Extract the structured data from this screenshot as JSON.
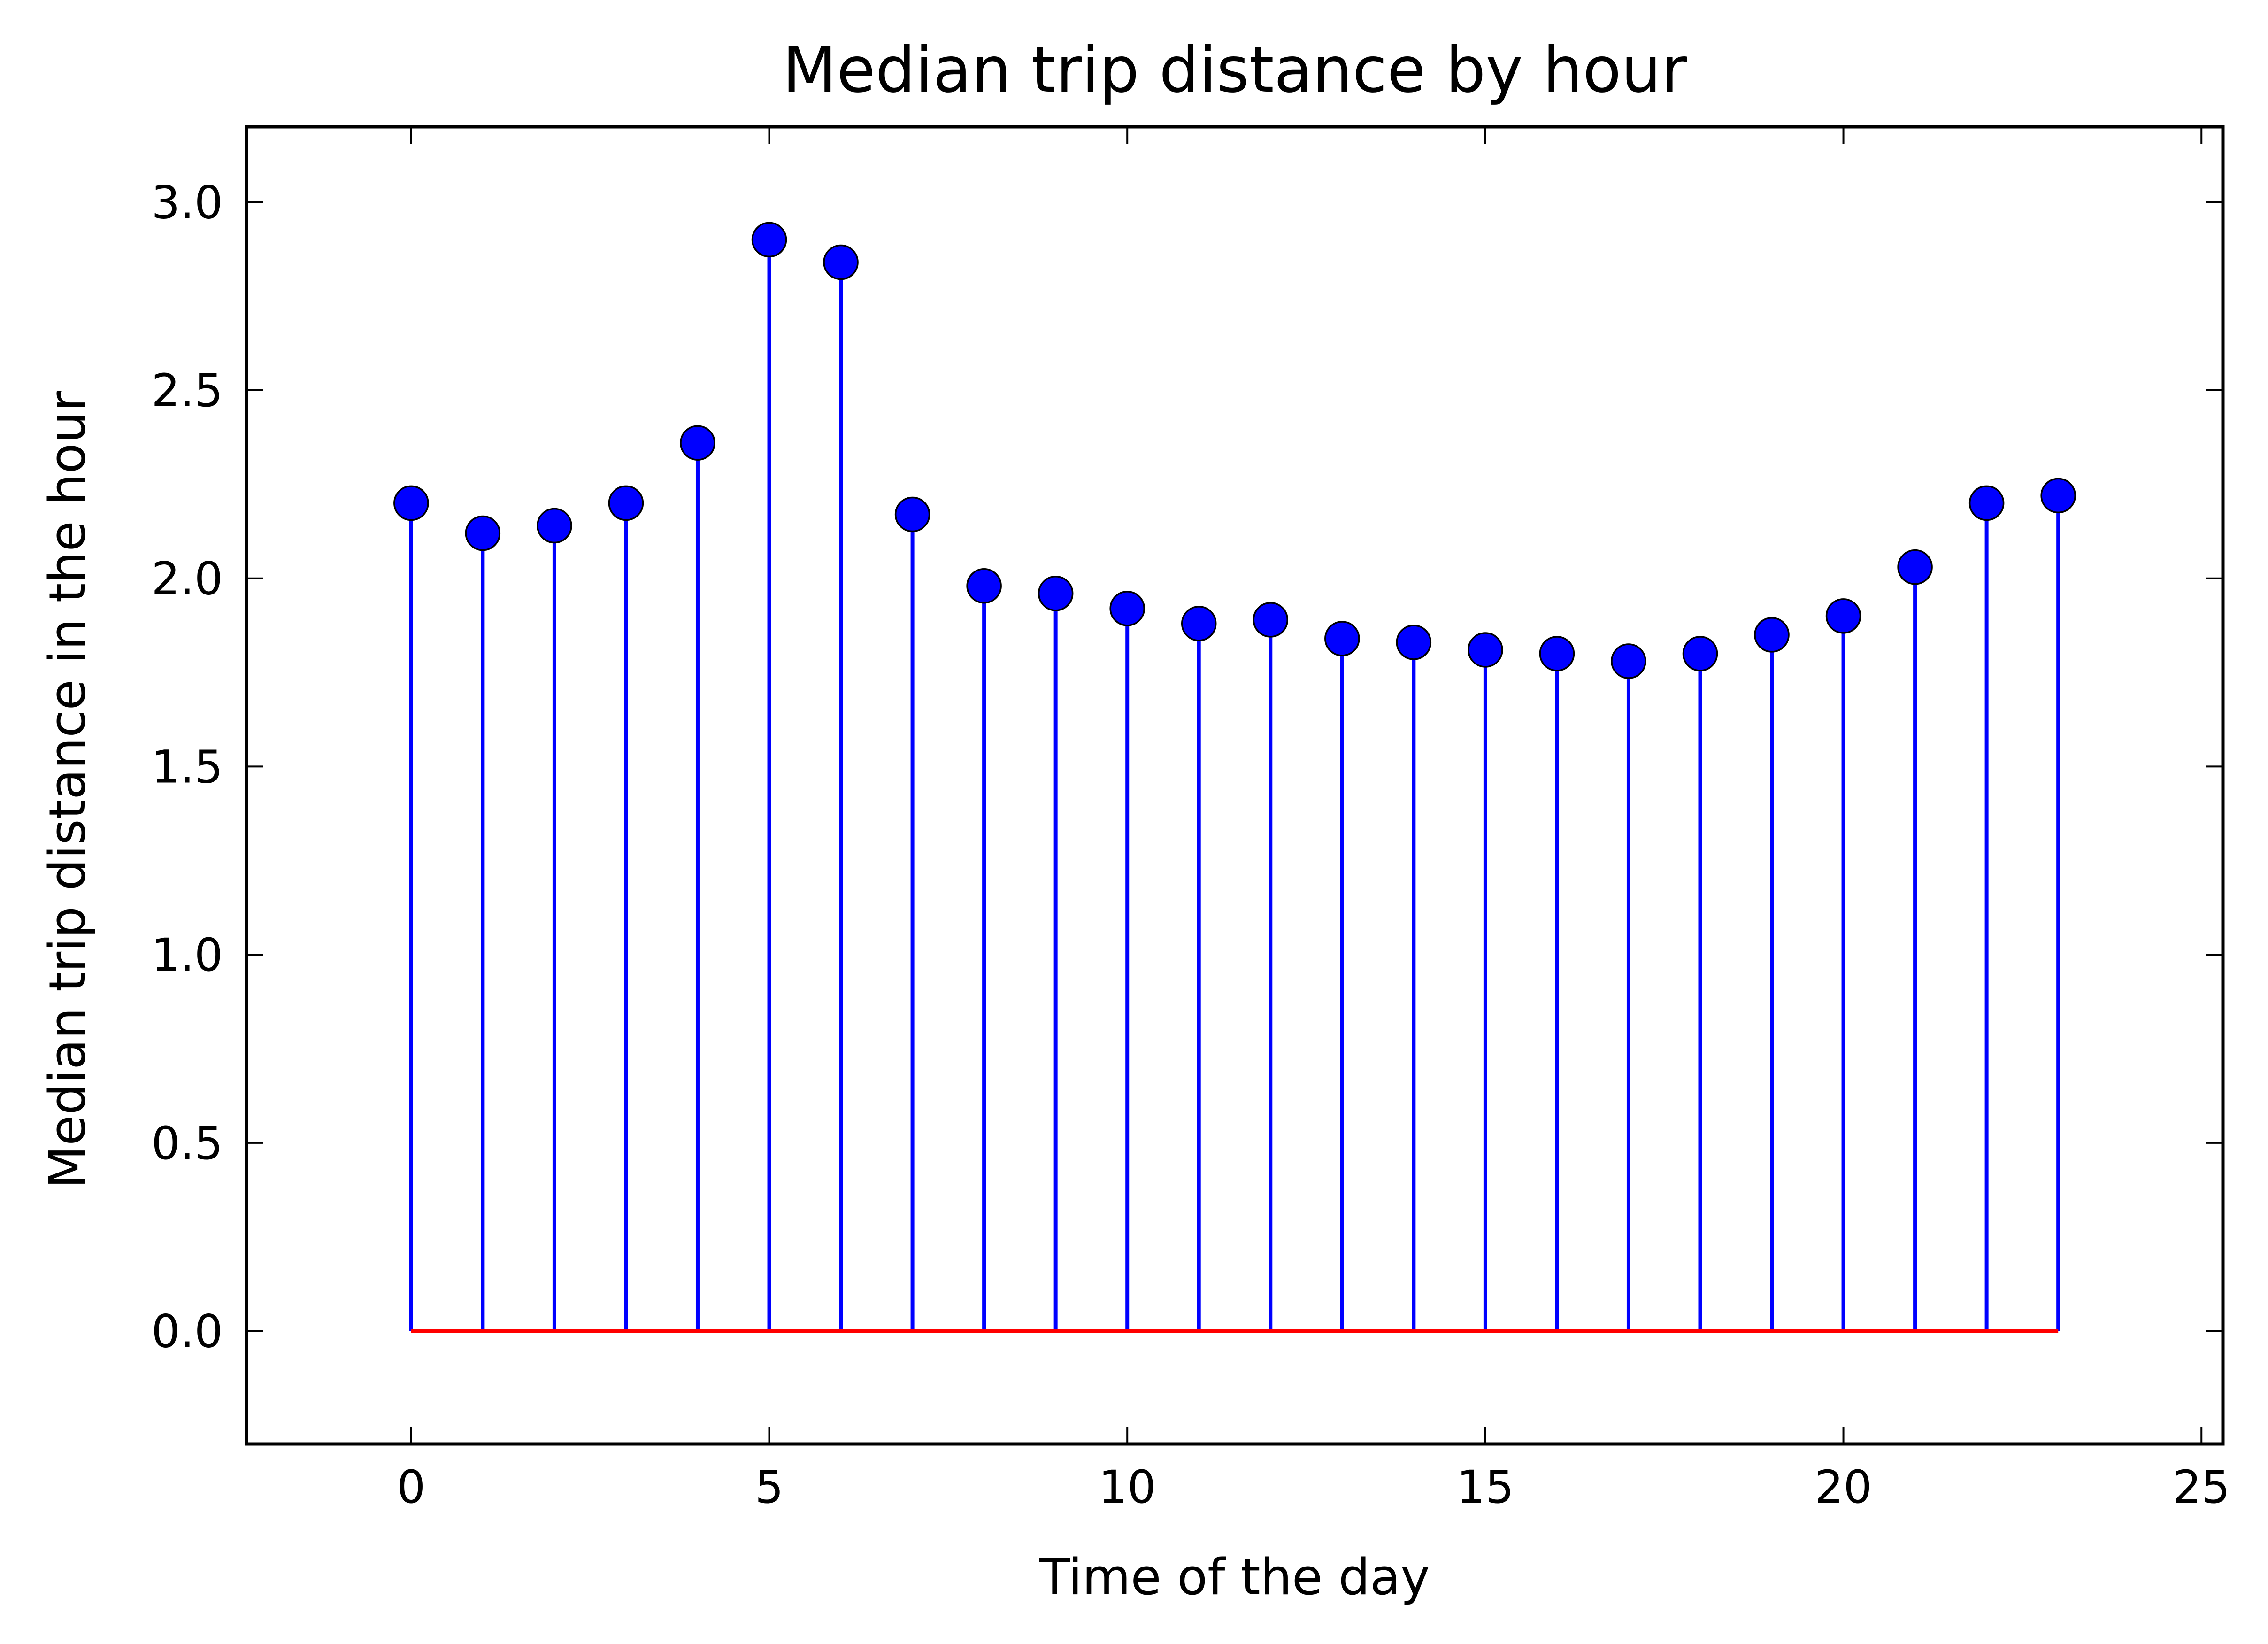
{
  "chart_data": {
    "type": "stem",
    "title": "Median trip distance by hour",
    "xlabel": "Time of the day",
    "ylabel": "Median trip distance in the hour",
    "xlim": [
      -2.3,
      25.3
    ],
    "ylim": [
      -0.3,
      3.2
    ],
    "xticks": [
      0,
      5,
      10,
      15,
      20,
      25
    ],
    "yticks": [
      0.0,
      0.5,
      1.0,
      1.5,
      2.0,
      2.5,
      3.0
    ],
    "xtick_labels": [
      "0",
      "5",
      "10",
      "15",
      "20",
      "25"
    ],
    "ytick_labels": [
      "0.0",
      "0.5",
      "1.0",
      "1.5",
      "2.0",
      "2.5",
      "3.0"
    ],
    "grid": false,
    "legend": "none",
    "x": [
      0,
      1,
      2,
      3,
      4,
      5,
      6,
      7,
      8,
      9,
      10,
      11,
      12,
      13,
      14,
      15,
      16,
      17,
      18,
      19,
      20,
      21,
      22,
      23
    ],
    "values": [
      2.2,
      2.12,
      2.14,
      2.2,
      2.36,
      2.9,
      2.84,
      2.17,
      1.98,
      1.96,
      1.92,
      1.88,
      1.89,
      1.84,
      1.83,
      1.81,
      1.8,
      1.78,
      1.8,
      1.85,
      1.9,
      2.03,
      2.2,
      2.22
    ],
    "baseline": 0,
    "colors": {
      "stem": "#0000ff",
      "marker_fill": "#0000ff",
      "marker_edge": "#000000",
      "baseline": "#ff0000",
      "axes": "#000000"
    }
  }
}
